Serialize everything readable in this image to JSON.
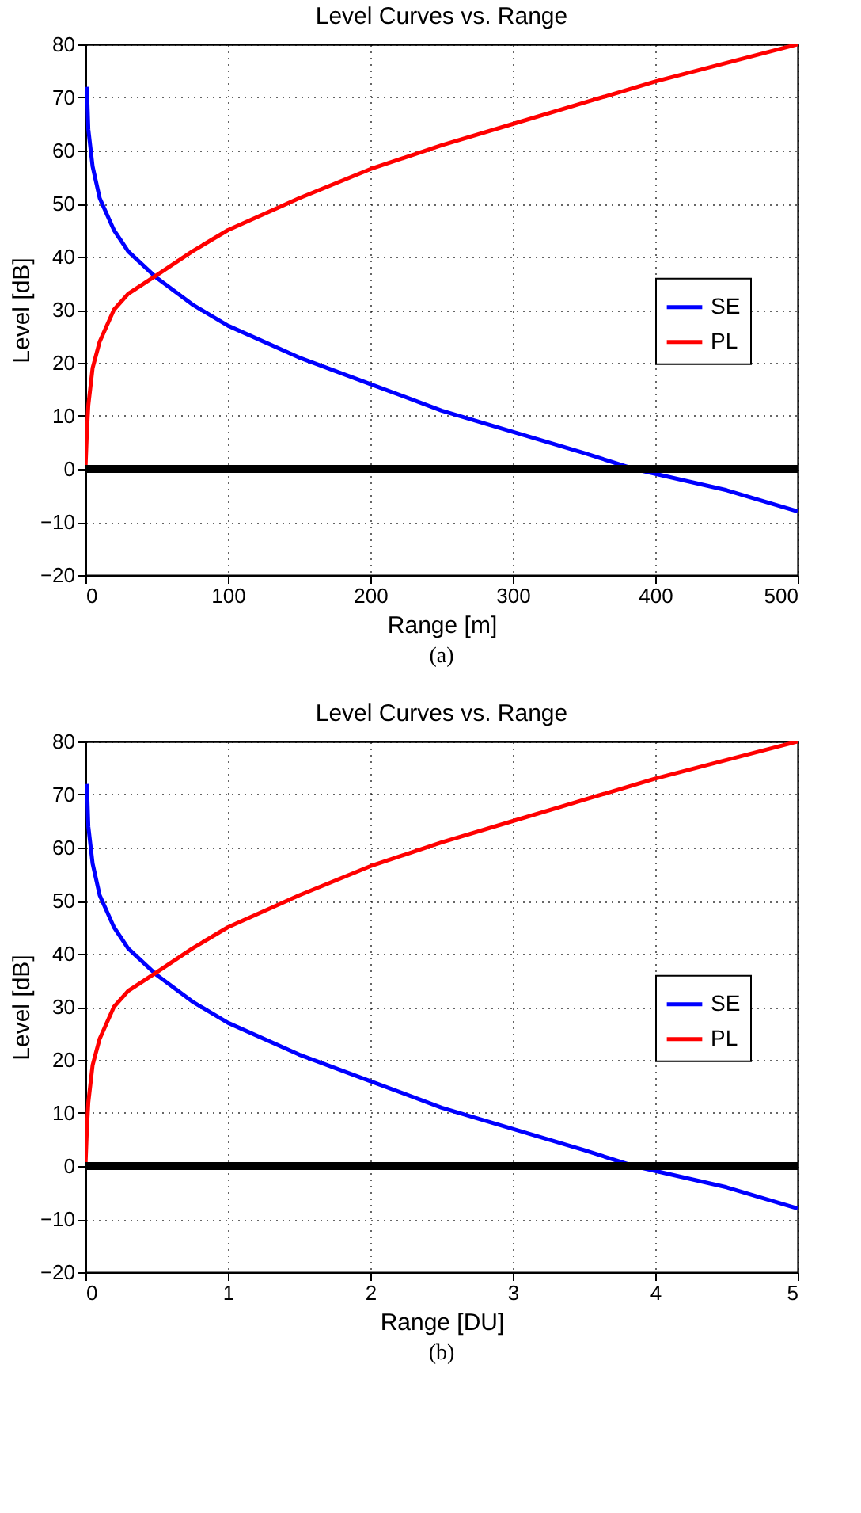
{
  "chart_data": [
    {
      "type": "line",
      "title": "Level Curves vs. Range",
      "xlabel": "Range [m]",
      "ylabel": "Level [dB]",
      "xlim": [
        0,
        500
      ],
      "ylim": [
        -20,
        80
      ],
      "xticks": [
        0,
        100,
        200,
        300,
        400,
        500
      ],
      "yticks": [
        {
          "value": -20,
          "label": "−20"
        },
        {
          "value": -10,
          "label": "−10"
        },
        0,
        10,
        20,
        30,
        40,
        50,
        60,
        70,
        80
      ],
      "grid": true,
      "legend": "right",
      "line_style": "solid",
      "marker": "none",
      "annotations": [
        "(a)"
      ],
      "ref_lines": [
        {
          "axis": "y",
          "value": 0,
          "color": "#000000",
          "line_style": "solid"
        }
      ],
      "series": [
        {
          "name": "SE",
          "color": "#0000ff",
          "x": [
            1,
            2,
            5,
            10,
            20,
            30,
            50,
            75,
            100,
            150,
            200,
            250,
            300,
            350,
            385,
            450,
            500
          ],
          "values": [
            72,
            64,
            57,
            51,
            45,
            41,
            36,
            31,
            27,
            21,
            16,
            11,
            7,
            3,
            0,
            -4,
            -8
          ]
        },
        {
          "name": "PL",
          "color": "#ff0000",
          "x": [
            0,
            1,
            2,
            5,
            10,
            20,
            30,
            50,
            75,
            100,
            150,
            200,
            250,
            300,
            350,
            400,
            450,
            500
          ],
          "values": [
            0,
            7,
            12,
            19,
            24,
            30,
            33,
            36.5,
            41,
            45,
            51,
            56.5,
            61,
            65,
            69,
            73,
            76.5,
            80
          ]
        }
      ]
    },
    {
      "type": "line",
      "title": "Level Curves vs. Range",
      "xlabel": "Range [DU]",
      "ylabel": "Level [dB]",
      "xlim": [
        0,
        5
      ],
      "ylim": [
        -20,
        80
      ],
      "xticks": [
        0,
        1,
        2,
        3,
        4,
        5
      ],
      "yticks": [
        {
          "value": -20,
          "label": "−20"
        },
        {
          "value": -10,
          "label": "−10"
        },
        0,
        10,
        20,
        30,
        40,
        50,
        60,
        70,
        80
      ],
      "grid": true,
      "legend": "right",
      "line_style": "solid",
      "marker": "none",
      "annotations": [
        "(b)"
      ],
      "ref_lines": [
        {
          "axis": "y",
          "value": 0,
          "color": "#000000",
          "line_style": "solid"
        }
      ],
      "series": [
        {
          "name": "SE",
          "color": "#0000ff",
          "x": [
            0.01,
            0.02,
            0.05,
            0.1,
            0.2,
            0.3,
            0.5,
            0.75,
            1,
            1.5,
            2,
            2.5,
            3,
            3.5,
            3.85,
            4.5,
            5
          ],
          "values": [
            72,
            64,
            57,
            51,
            45,
            41,
            36,
            31,
            27,
            21,
            16,
            11,
            7,
            3,
            0,
            -4,
            -8
          ]
        },
        {
          "name": "PL",
          "color": "#ff0000",
          "x": [
            0,
            0.01,
            0.02,
            0.05,
            0.1,
            0.2,
            0.3,
            0.5,
            0.75,
            1,
            1.5,
            2,
            2.5,
            3,
            3.5,
            4,
            4.5,
            5
          ],
          "values": [
            0,
            7,
            12,
            19,
            24,
            30,
            33,
            36.5,
            41,
            45,
            51,
            56.5,
            61,
            65,
            69,
            73,
            76.5,
            80
          ]
        }
      ]
    }
  ]
}
